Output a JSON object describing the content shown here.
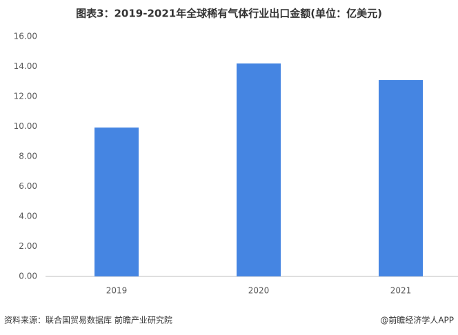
{
  "chart_data": {
    "type": "bar",
    "title": "图表3：2019-2021年全球稀有气体行业出口金额(单位：亿美元)",
    "categories": [
      "2019",
      "2020",
      "2021"
    ],
    "values": [
      9.93,
      14.2,
      13.1
    ],
    "color": "#4585e2",
    "ylim": [
      0,
      16
    ],
    "yticks": [
      {
        "value": 0,
        "label": "0.00"
      },
      {
        "value": 2,
        "label": "2.00"
      },
      {
        "value": 4,
        "label": "4.00"
      },
      {
        "value": 6,
        "label": "6.00"
      },
      {
        "value": 8,
        "label": "8.00"
      },
      {
        "value": 10,
        "label": "10.00"
      },
      {
        "value": 12,
        "label": "12.00"
      },
      {
        "value": 14,
        "label": "14.00"
      },
      {
        "value": 16,
        "label": "16.00"
      }
    ],
    "grid": false,
    "source": "资料来源：联合国贸易数据库 前瞻产业研究院",
    "credit": "@前瞻经济学人APP"
  }
}
